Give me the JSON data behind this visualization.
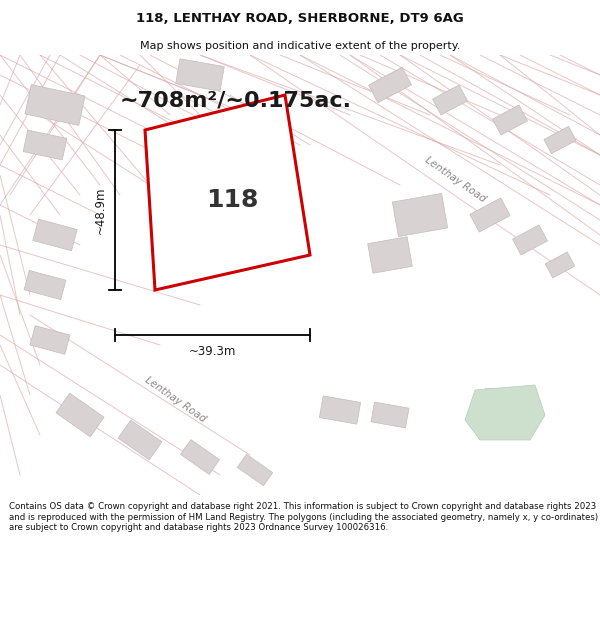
{
  "title": "118, LENTHAY ROAD, SHERBORNE, DT9 6AG",
  "subtitle": "Map shows position and indicative extent of the property.",
  "footer": "Contains OS data © Crown copyright and database right 2021. This information is subject to Crown copyright and database rights 2023 and is reproduced with the permission of HM Land Registry. The polygons (including the associated geometry, namely x, y co-ordinates) are subject to Crown copyright and database rights 2023 Ordnance Survey 100026316.",
  "area_label": "~708m²/~0.175ac.",
  "number_label": "118",
  "dim_h": "~48.9m",
  "dim_w": "~39.3m",
  "road_label_1": "Lenthay Road",
  "road_label_2": "Lenthay Road",
  "map_bg": "#f2eeee",
  "plot_edge_color": "#cc0000",
  "building_face": "#d8d2d2",
  "building_edge": "#c4bcbc",
  "road_line_color": "#dba8a8",
  "fig_width": 6.0,
  "fig_height": 6.25,
  "title_fontsize": 9.5,
  "subtitle_fontsize": 8,
  "footer_fontsize": 6.2,
  "area_fontsize": 16,
  "number_fontsize": 18,
  "dim_fontsize": 8.5
}
